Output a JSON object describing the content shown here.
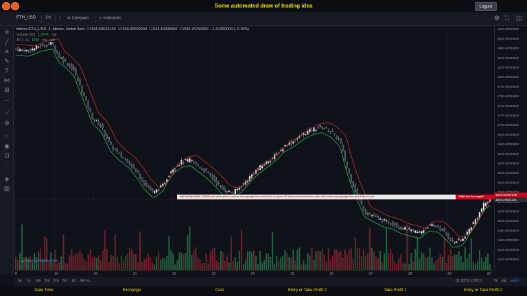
{
  "app": {
    "title": "Some automated draw of trading idea",
    "logout_label": "Logout"
  },
  "toolbar": {
    "symbol": "ETH_USD",
    "interval": "2m",
    "compare_label": "Compare",
    "indicators_label": "Indicators"
  },
  "legend": {
    "series_name": "bitmex:ETH_USD, 2, bitmex, Heikin Ashi",
    "o_key": "O",
    "o_val": "1545.59623159",
    "h_key": "H",
    "h_val": "1546.90000000",
    "l_key": "L",
    "l_val": "1544.40000000",
    "c_key": "C",
    "c_val": "1545.78750000",
    "change": "−1.61250000 (−0.10%)",
    "volume_label": "Volume (20)",
    "volume_val": "1.077K",
    "volume_na": "n/a",
    "ai_label": "AI (1, 1)",
    "ai_val": "1550",
    "ai_na1": "n/a",
    "ai_na2": "n/a"
  },
  "price_axis": {
    "labels": [
      "1900.00000000",
      "1880.00000000",
      "1860.00000000",
      "1840.00000000",
      "1820.00000000",
      "1800.00000000",
      "1780.00000000",
      "1760.00000000",
      "1740.00000000",
      "1720.00000000",
      "1700.00000000",
      "1680.00000000",
      "1660.00000000",
      "1640.00000000",
      "1620.00000000",
      "1600.00000000",
      "1580.00000000",
      "1560.00000000",
      "1540.00000000",
      "1520.00000000",
      "1500.00000000",
      "1480.00000000",
      "1460.00000000",
      "1440.00000000",
      "1420.00000000"
    ],
    "tag_red": "1546.83757249",
    "tag_white": "1546.24621141"
  },
  "time_axis": {
    "labels": [
      "8",
      "19",
      "20",
      "21",
      "22",
      "23",
      "24",
      "25",
      "26",
      "27",
      "28",
      "29",
      "30"
    ]
  },
  "annotation": {
    "text": "Wait till flip ENDS  !    DRAW  just when   price is above strong angle line and AI line is green        OR         draw shorts just when price still below strong angle line and AI line is red",
    "red_text": "THEN See the magic!!"
  },
  "watermark": "Chart by TradingView",
  "bottom": {
    "ranges": [
      "5y",
      "1y",
      "6m",
      "3m",
      "1m",
      "5d",
      "1d",
      "Go to..."
    ],
    "time": "01:03:31 (UTC)",
    "percent_label": "%",
    "log_label": "log",
    "auto_label": "auto"
  },
  "status": {
    "items": [
      "Date Time",
      "Exchange",
      "Coin",
      "Entry or Take Profit 2",
      "Take Profit 1",
      "Entry or Take Profit 2"
    ]
  },
  "colors": {
    "accent_yellow": "#f2e500",
    "up_green": "#2ebd5f",
    "down_red": "#d0342c",
    "bg": "#0e1117"
  },
  "icons": {
    "left_tools": [
      "crosshair-icon",
      "trend-line-icon",
      "fib-icon",
      "brush-icon",
      "text-icon",
      "pattern-icon",
      "measure-icon",
      "arrow-icon",
      "ruler-icon",
      "zoom-icon",
      "magnet-icon",
      "eye-icon",
      "lock-icon",
      "trash-icon"
    ]
  },
  "chart_data": {
    "type": "candlestick",
    "symbol": "bitmex:ETH_USD",
    "style": "Heikin Ashi",
    "x_ticks": [
      "8",
      "19",
      "20",
      "21",
      "22",
      "23",
      "24",
      "25",
      "26",
      "27",
      "28",
      "29",
      "30"
    ],
    "ylim": [
      1400,
      1910
    ],
    "close_path": [
      [
        0,
        1865
      ],
      [
        4,
        1862
      ],
      [
        8,
        1872
      ],
      [
        12,
        1878
      ],
      [
        14,
        1850
      ],
      [
        16,
        1840
      ],
      [
        19,
        1820
      ],
      [
        22,
        1770
      ],
      [
        25,
        1720
      ],
      [
        28,
        1700
      ],
      [
        31,
        1660
      ],
      [
        34,
        1640
      ],
      [
        37,
        1625
      ],
      [
        40,
        1600
      ],
      [
        42,
        1580
      ],
      [
        45,
        1560
      ],
      [
        48,
        1575
      ],
      [
        51,
        1610
      ],
      [
        54,
        1625
      ],
      [
        57,
        1630
      ],
      [
        60,
        1615
      ],
      [
        63,
        1600
      ],
      [
        66,
        1580
      ],
      [
        68,
        1565
      ],
      [
        71,
        1560
      ],
      [
        74,
        1575
      ],
      [
        76,
        1590
      ],
      [
        79,
        1610
      ],
      [
        82,
        1625
      ],
      [
        85,
        1640
      ],
      [
        88,
        1660
      ],
      [
        91,
        1670
      ],
      [
        94,
        1685
      ],
      [
        97,
        1695
      ],
      [
        100,
        1700
      ],
      [
        103,
        1690
      ],
      [
        106,
        1670
      ],
      [
        108,
        1620
      ],
      [
        110,
        1580
      ],
      [
        112,
        1550
      ],
      [
        114,
        1520
      ],
      [
        117,
        1510
      ],
      [
        120,
        1500
      ],
      [
        123,
        1495
      ],
      [
        126,
        1485
      ],
      [
        129,
        1480
      ],
      [
        132,
        1475
      ],
      [
        135,
        1490
      ],
      [
        138,
        1488
      ],
      [
        141,
        1470
      ],
      [
        143,
        1455
      ],
      [
        146,
        1460
      ],
      [
        149,
        1490
      ],
      [
        151,
        1510
      ],
      [
        153,
        1535
      ],
      [
        155,
        1545
      ]
    ],
    "x_max": 155
  }
}
